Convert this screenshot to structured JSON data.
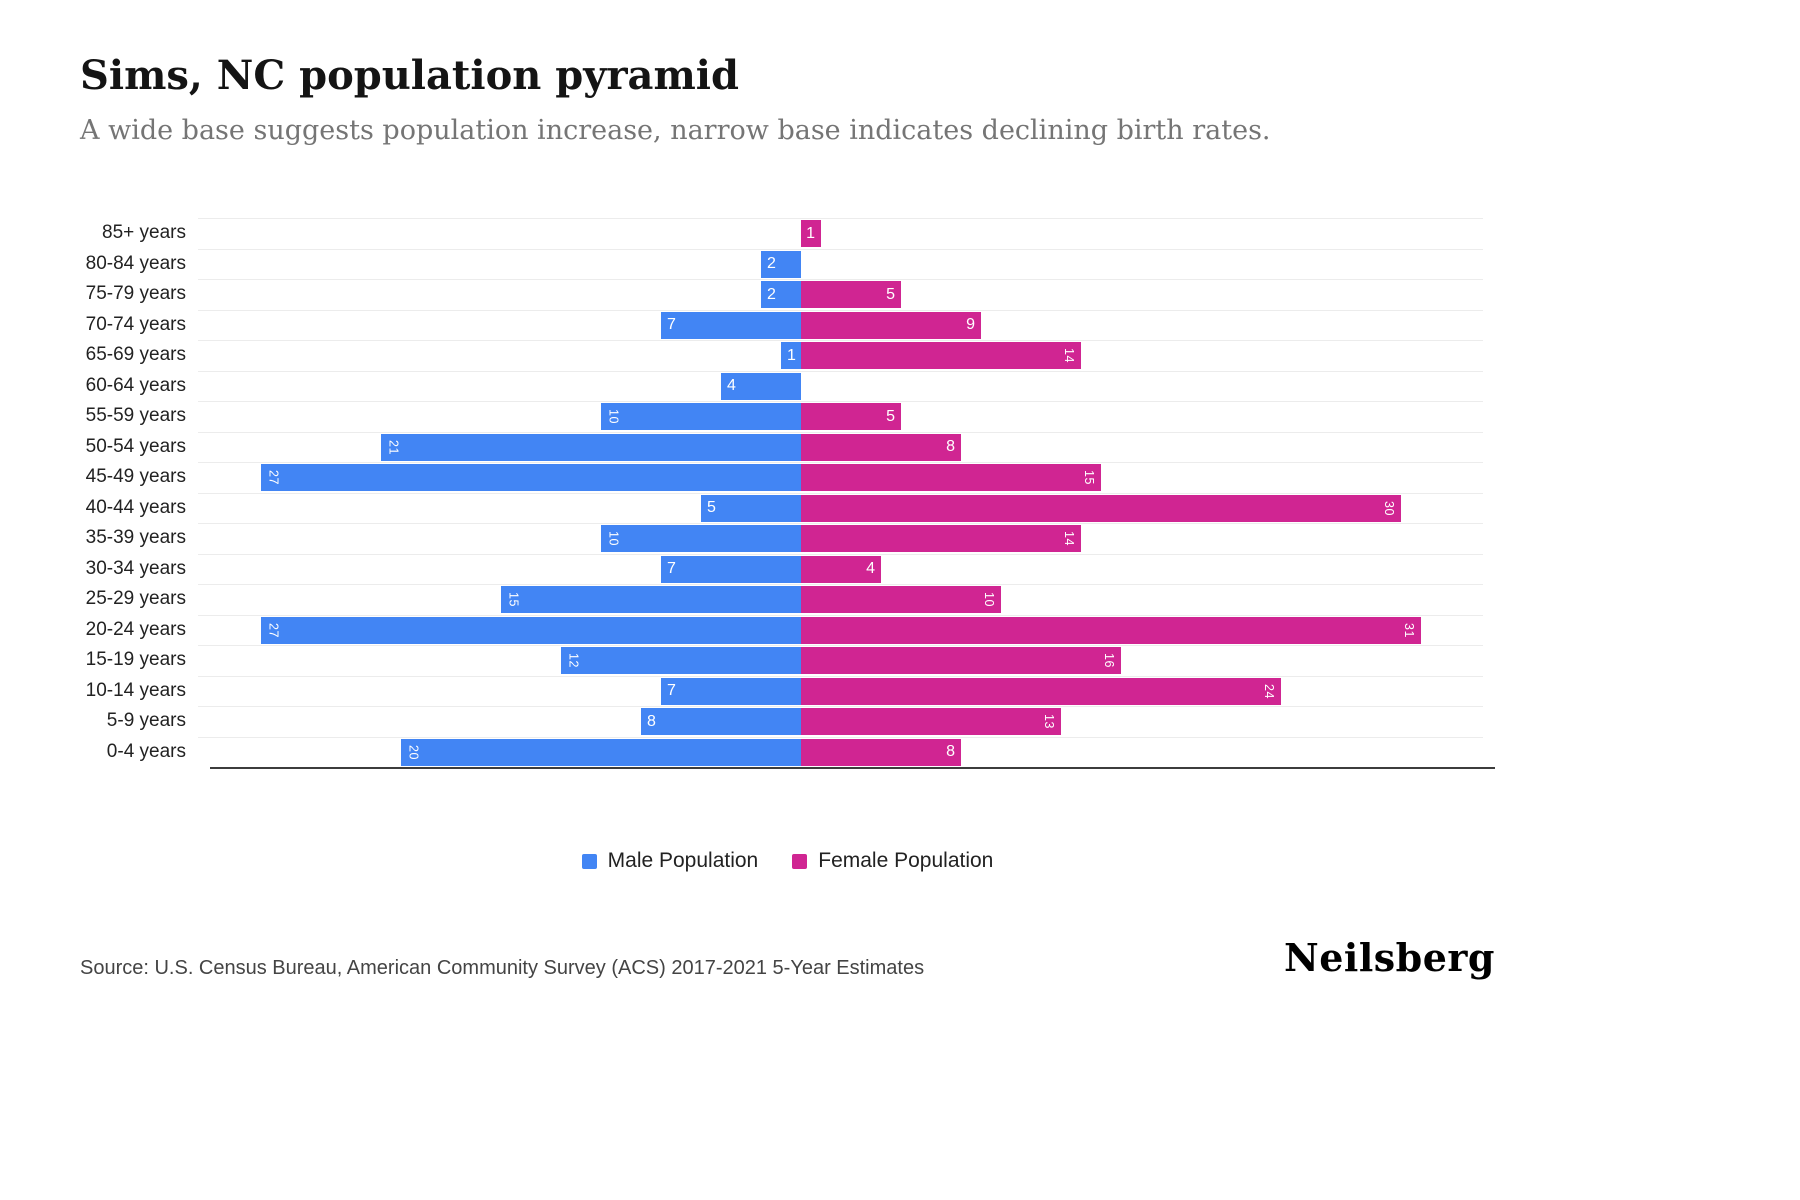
{
  "header": {
    "title": "Sims, NC population pyramid",
    "subtitle": "A wide base suggests population increase, narrow base indicates declining birth rates."
  },
  "chart_data": {
    "type": "bar",
    "variant": "population-pyramid",
    "title": "Sims, NC population pyramid",
    "categories": [
      "85+ years",
      "80-84 years",
      "75-79 years",
      "70-74 years",
      "65-69 years",
      "60-64 years",
      "55-59 years",
      "50-54 years",
      "45-49 years",
      "40-44 years",
      "35-39 years",
      "30-34 years",
      "25-29 years",
      "20-24 years",
      "15-19 years",
      "10-14 years",
      "5-9 years",
      "0-4 years"
    ],
    "series": [
      {
        "name": "Male Population",
        "color": "#4285f4",
        "values": [
          0,
          2,
          2,
          7,
          1,
          4,
          10,
          21,
          27,
          5,
          10,
          7,
          15,
          27,
          12,
          7,
          8,
          20
        ]
      },
      {
        "name": "Female Population",
        "color": "#d02592",
        "values": [
          1,
          0,
          5,
          9,
          14,
          0,
          5,
          8,
          15,
          30,
          14,
          4,
          10,
          31,
          16,
          24,
          13,
          8
        ]
      }
    ],
    "value_max": 31,
    "grid": true,
    "legend_position": "bottom",
    "bar_labels": "inside-outer-end, white"
  },
  "legend": {
    "male": "Male Population",
    "female": "Female Population"
  },
  "footer": {
    "source": "Source: U.S. Census Bureau, American Community Survey (ACS) 2017-2021 5-Year Estimates",
    "brand": "Neilsberg"
  }
}
